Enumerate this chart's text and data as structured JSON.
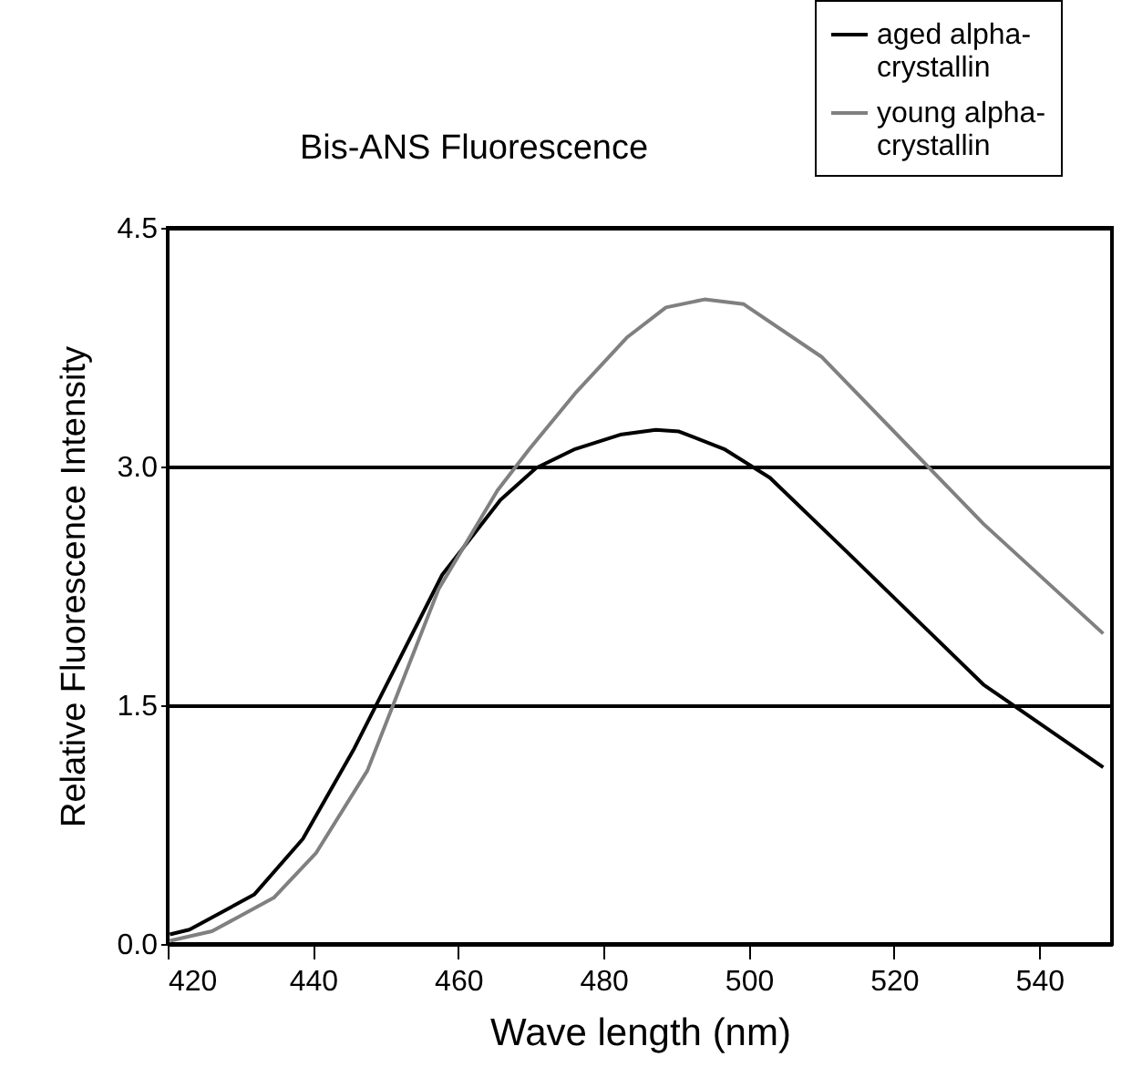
{
  "chart_data": {
    "type": "line",
    "title": "Bis-ANS Fluorescence",
    "xlabel": "Wave length (nm)",
    "ylabel": "Relative Fluorescence Intensity",
    "xlim": [
      420,
      550
    ],
    "xticks": [
      420,
      440,
      460,
      480,
      500,
      520,
      540
    ],
    "ylim": [
      0,
      4.5
    ],
    "yticks": [
      {
        "value": 0,
        "label": "0.0"
      },
      1.5,
      {
        "value": 3,
        "label": "3.0"
      },
      4.5
    ],
    "grid": "y",
    "legend": "top right",
    "line_style": "solid",
    "series": [
      {
        "name": "aged alpha-crystallin",
        "color": "#000000",
        "x": [
          420.3,
          423,
          431.9,
          438.6,
          445.7,
          457.8,
          465.8,
          470.7,
          476.1,
          482.3,
          487.2,
          490.4,
          496.6,
          502.9,
          513.6,
          532.3,
          548.8
        ],
        "values": [
          0.06,
          0.09,
          0.31,
          0.66,
          1.23,
          2.32,
          2.79,
          2.99,
          3.11,
          3.2,
          3.23,
          3.22,
          3.11,
          2.93,
          2.46,
          1.63,
          1.11
        ]
      },
      {
        "name": "young alpha-crystallin",
        "color": "#808080",
        "x": [
          420.3,
          426.1,
          434.6,
          440.4,
          447.5,
          457.3,
          465.4,
          469.8,
          476.1,
          483.2,
          488.6,
          493.9,
          499.3,
          510,
          532.3,
          548.8
        ],
        "values": [
          0.02,
          0.08,
          0.29,
          0.57,
          1.09,
          2.23,
          2.85,
          3.11,
          3.46,
          3.81,
          4.0,
          4.05,
          4.02,
          3.69,
          2.64,
          1.95
        ]
      }
    ]
  }
}
